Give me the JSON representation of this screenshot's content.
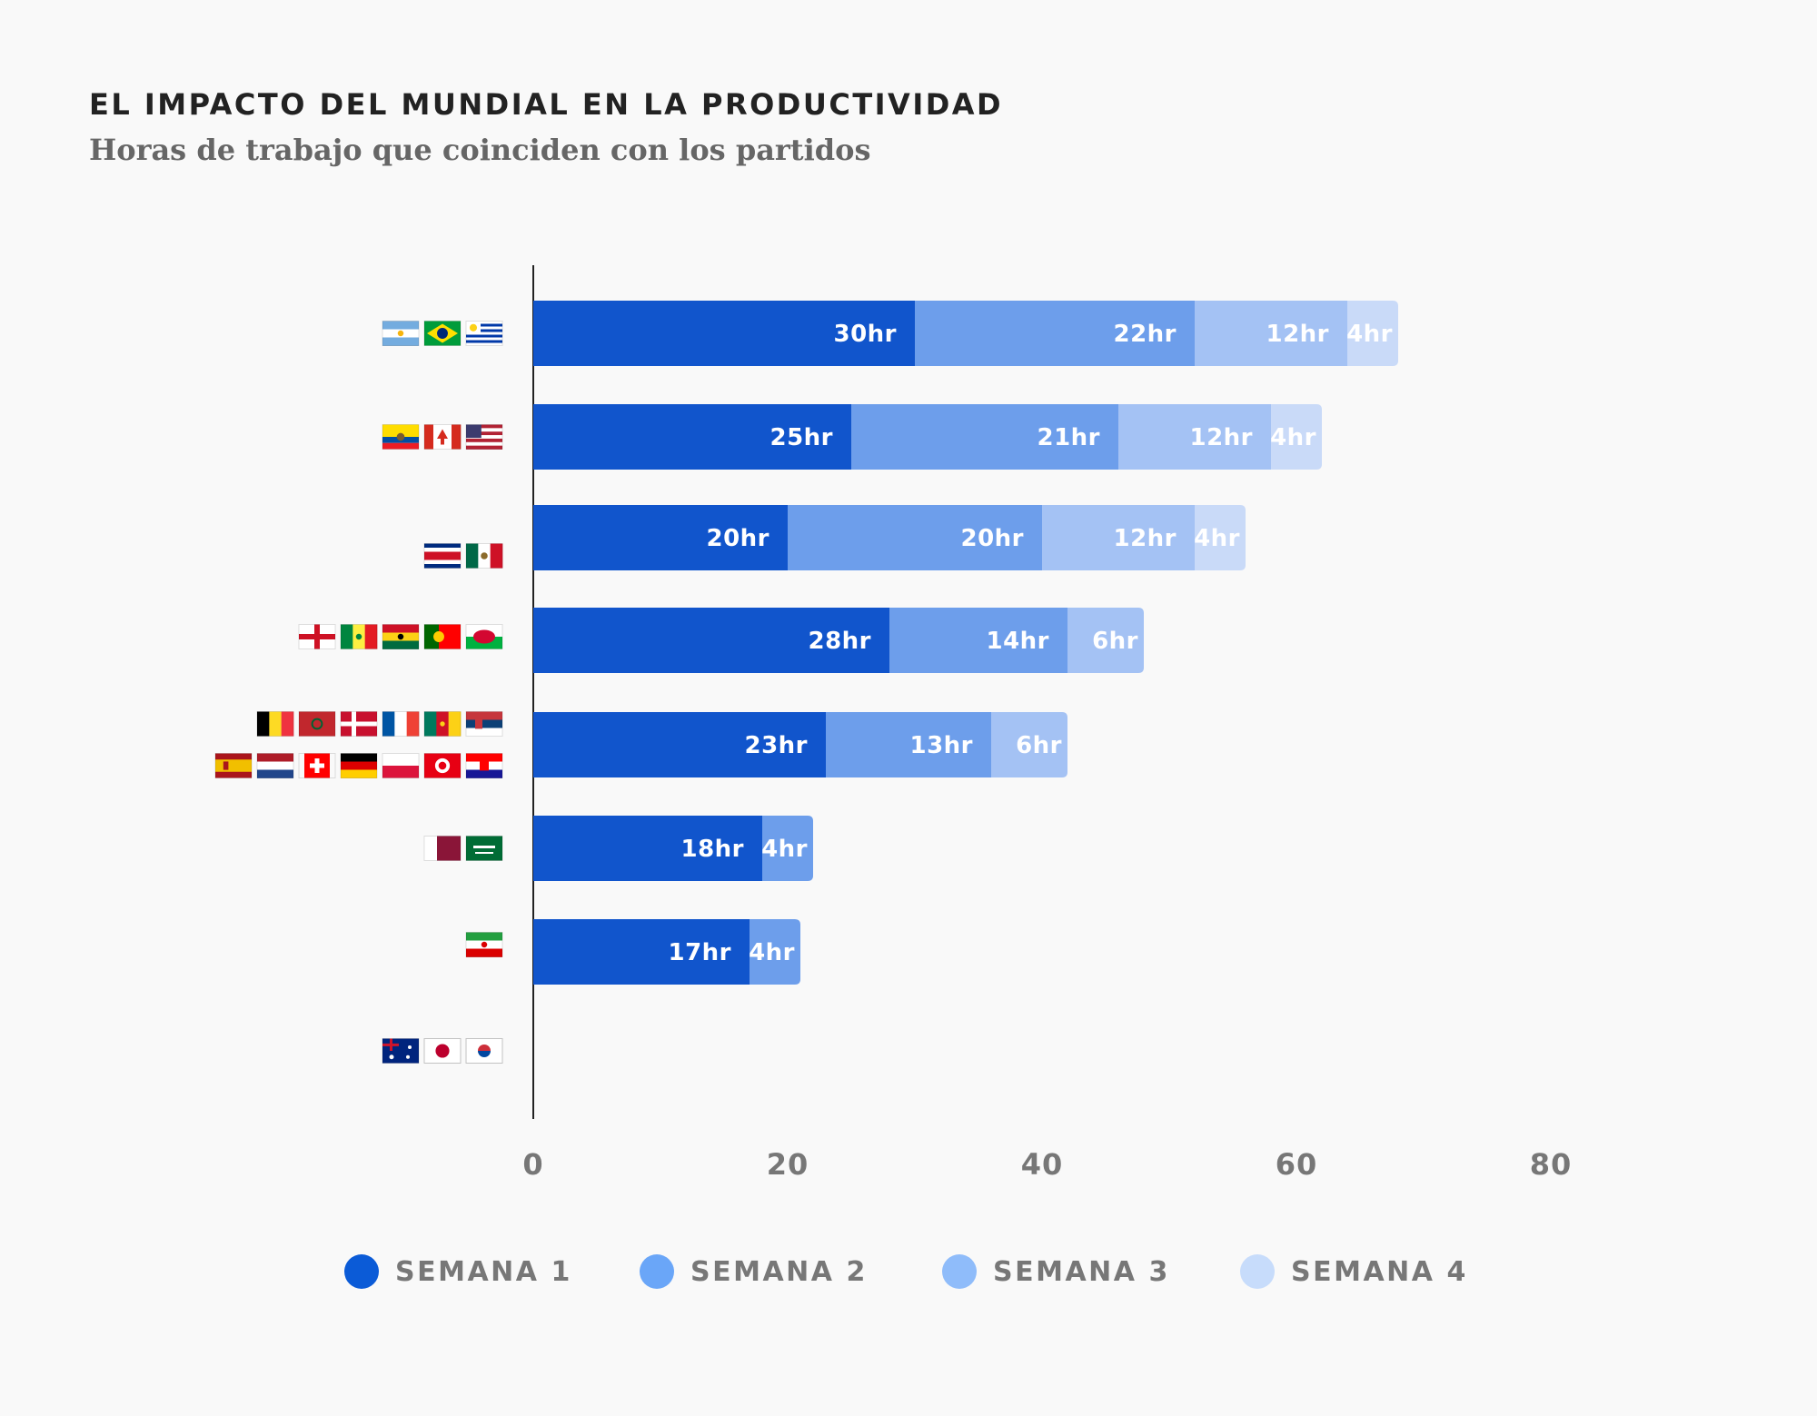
{
  "header": {
    "title": "EL IMPACTO DEL MUNDIAL EN LA PRODUCTIVIDAD",
    "subtitle": "Horas de trabajo que coinciden con los partidos"
  },
  "chart_data": {
    "type": "bar",
    "orientation": "horizontal",
    "stacked": true,
    "title": "EL IMPACTO DEL MUNDIAL EN LA PRODUCTIVIDAD",
    "subtitle": "Horas de trabajo que coinciden con los partidos",
    "xlabel": "",
    "ylabel": "",
    "xlim": [
      0,
      80
    ],
    "x_ticks": [
      0,
      20,
      40,
      60,
      80
    ],
    "grid": false,
    "legend_position": "bottom",
    "value_suffix": "hr",
    "category_icons": [
      [
        "flag-argentina",
        "flag-brazil",
        "flag-uruguay"
      ],
      [
        "flag-ecuador",
        "flag-canada",
        "flag-usa"
      ],
      [
        "flag-costa-rica",
        "flag-mexico"
      ],
      [
        "flag-england",
        "flag-senegal",
        "flag-ghana",
        "flag-portugal",
        "flag-wales"
      ],
      [
        "flag-belgium",
        "flag-morocco",
        "flag-denmark",
        "flag-france",
        "flag-cameroon",
        "flag-serbia",
        "flag-spain",
        "flag-netherlands",
        "flag-switzerland",
        "flag-germany",
        "flag-poland",
        "flag-tunisia",
        "flag-croatia"
      ],
      [
        "flag-qatar",
        "flag-saudi-arabia"
      ],
      [
        "flag-iran"
      ],
      [
        "flag-australia",
        "flag-japan",
        "flag-south-korea"
      ]
    ],
    "series": [
      {
        "name": "SEMANA 1",
        "color": "#1155cc",
        "values": [
          30,
          25,
          20,
          28,
          23,
          18,
          17,
          0
        ]
      },
      {
        "name": "SEMANA 2",
        "color": "#6d9eeb",
        "values": [
          22,
          21,
          20,
          14,
          13,
          4,
          4,
          0
        ]
      },
      {
        "name": "SEMANA 3",
        "color": "#a4c2f4",
        "values": [
          12,
          12,
          12,
          6,
          6,
          0,
          0,
          0
        ]
      },
      {
        "name": "SEMANA 4",
        "color": "#c9daf8",
        "values": [
          4,
          4,
          4,
          0,
          0,
          0,
          0,
          0
        ]
      }
    ],
    "legend_colors": [
      "#0b5bd7",
      "#6aa6f8",
      "#8fbcfa",
      "#c7dcfb"
    ]
  }
}
